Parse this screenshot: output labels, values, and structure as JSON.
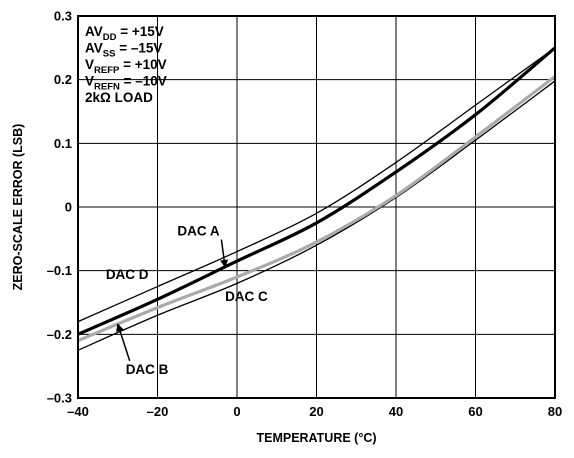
{
  "chart_data": {
    "type": "line",
    "xlabel": "TEMPERATURE (°C)",
    "ylabel": "ZERO-SCALE ERROR (LSB)",
    "xlim": [
      -40,
      80
    ],
    "ylim": [
      -0.3,
      0.3
    ],
    "x_ticks": [
      "–40",
      "–20",
      "0",
      "20",
      "40",
      "60",
      "80"
    ],
    "y_ticks": [
      "0.3",
      "0.2",
      "0.1",
      "0",
      "–0.1",
      "–0.2",
      "–0.3"
    ],
    "grid": true,
    "conditions": [
      {
        "main": "AV",
        "sub": "DD",
        "rest": " = +15V"
      },
      {
        "main": "AV",
        "sub": "SS",
        "rest": " = –15V"
      },
      {
        "main": "V",
        "sub": "REFP",
        "rest": " = +10V"
      },
      {
        "main": "V",
        "sub": "REFN",
        "rest": " = –10V"
      },
      {
        "main": "2kΩ LOAD",
        "sub": "",
        "rest": ""
      }
    ],
    "x": [
      -40,
      -20,
      0,
      20,
      40,
      60,
      80
    ],
    "series": [
      {
        "name": "DAC A",
        "color": "#000000",
        "width": 3.2,
        "values": [
          -0.2,
          -0.145,
          -0.085,
          -0.025,
          0.055,
          0.145,
          0.25
        ]
      },
      {
        "name": "DAC B",
        "color": "#aaaaaa",
        "width": 3.2,
        "values": [
          -0.21,
          -0.158,
          -0.11,
          -0.055,
          0.018,
          0.11,
          0.205
        ]
      },
      {
        "name": "DAC C",
        "color": "#000000",
        "width": 1.3,
        "values": [
          -0.225,
          -0.17,
          -0.12,
          -0.06,
          0.015,
          0.105,
          0.198
        ]
      },
      {
        "name": "DAC D",
        "color": "#000000",
        "width": 1.3,
        "values": [
          -0.18,
          -0.125,
          -0.07,
          -0.01,
          0.07,
          0.16,
          0.25
        ]
      }
    ],
    "annotations": [
      {
        "text": "DAC A",
        "series": "DAC A",
        "at_x": -3,
        "label_x": -15,
        "label_y": -0.045,
        "arrow": true
      },
      {
        "text": "DAC B",
        "series": "DAC B",
        "at_x": -30,
        "label_x": -28,
        "label_y": -0.262,
        "arrow": true
      },
      {
        "text": "DAC C",
        "series": "DAC C",
        "at_x": 0,
        "label_x": -3,
        "label_y": -0.148,
        "arrow": false
      },
      {
        "text": "DAC D",
        "series": "DAC D",
        "at_x": -17,
        "label_x": -33,
        "label_y": -0.113,
        "arrow": false
      }
    ]
  }
}
